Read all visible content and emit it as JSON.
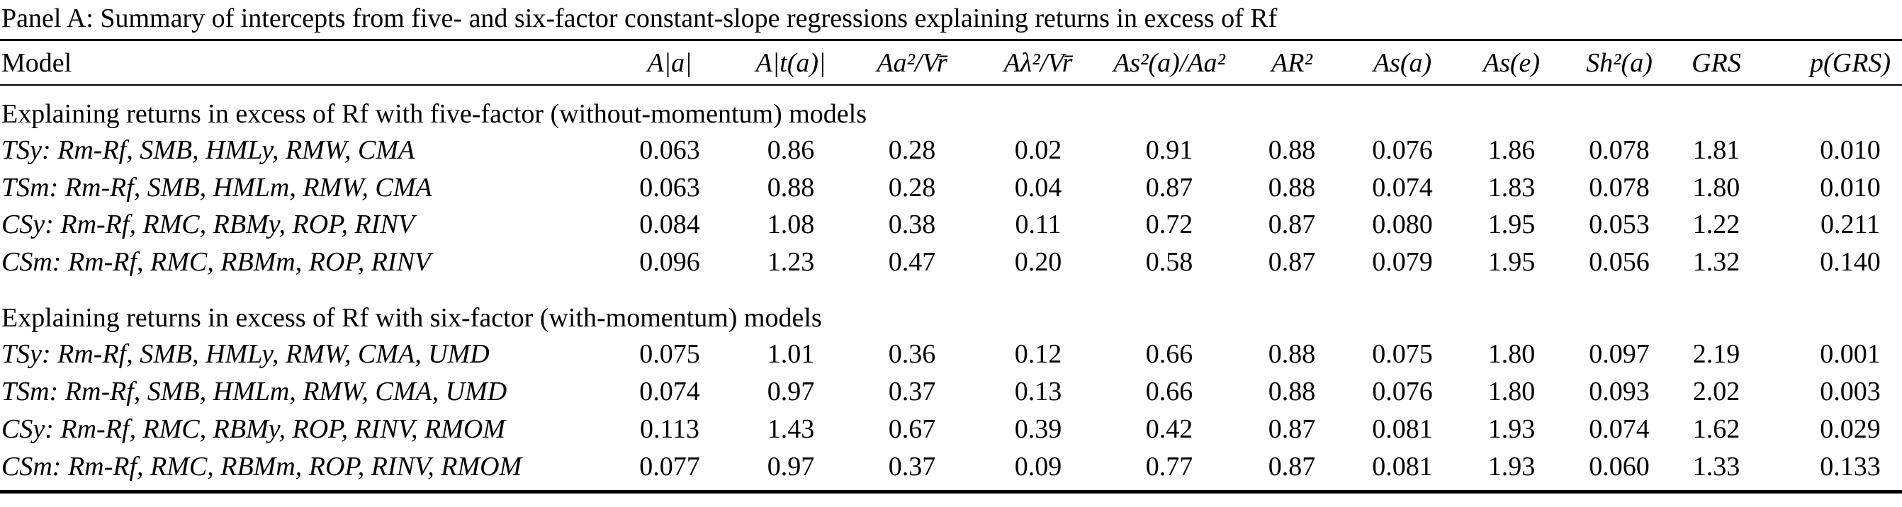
{
  "header": {
    "title": "Panel A: Summary of intercepts from five- and six-factor constant-slope regressions explaining returns in excess of Rf"
  },
  "table": {
    "columns": [
      "Model",
      "A|a|",
      "A|t(a)|",
      "Aa²/Vr̄",
      "Aλ²/Vr̄",
      "As²(a)/Aa²",
      "AR²",
      "As(a)",
      "As(e)",
      "Sh²(a)",
      "GRS",
      "p(GRS)"
    ],
    "sections": [
      {
        "title": "Explaining returns in excess of Rf with five-factor (without-momentum) models",
        "rows": [
          [
            "TSy:  Rm-Rf, SMB, HMLy, RMW, CMA",
            "0.063",
            "0.86",
            "0.28",
            "0.02",
            "0.91",
            "0.88",
            "0.076",
            "1.86",
            "0.078",
            "1.81",
            "0.010"
          ],
          [
            "TSm: Rm-Rf, SMB, HMLm, RMW, CMA",
            "0.063",
            "0.88",
            "0.28",
            "0.04",
            "0.87",
            "0.88",
            "0.074",
            "1.83",
            "0.078",
            "1.80",
            "0.010"
          ],
          [
            "CSy: Rm-Rf, RMC, RBMy, ROP, RINV",
            "0.084",
            "1.08",
            "0.38",
            "0.11",
            "0.72",
            "0.87",
            "0.080",
            "1.95",
            "0.053",
            "1.22",
            "0.211"
          ],
          [
            "CSm: Rm-Rf, RMC, RBMm, ROP, RINV",
            "0.096",
            "1.23",
            "0.47",
            "0.20",
            "0.58",
            "0.87",
            "0.079",
            "1.95",
            "0.056",
            "1.32",
            "0.140"
          ]
        ]
      },
      {
        "title": "Explaining returns in excess of Rf with six-factor (with-momentum) models",
        "rows": [
          [
            "TSy:  Rm-Rf, SMB, HMLy, RMW, CMA, UMD",
            "0.075",
            "1.01",
            "0.36",
            "0.12",
            "0.66",
            "0.88",
            "0.075",
            "1.80",
            "0.097",
            "2.19",
            "0.001"
          ],
          [
            "TSm: Rm-Rf, SMB, HMLm, RMW, CMA, UMD",
            "0.074",
            "0.97",
            "0.37",
            "0.13",
            "0.66",
            "0.88",
            "0.076",
            "1.80",
            "0.093",
            "2.02",
            "0.003"
          ],
          [
            "CSy: Rm-Rf, RMC, RBMy, ROP, RINV, RMOM",
            "0.113",
            "1.43",
            "0.67",
            "0.39",
            "0.42",
            "0.87",
            "0.081",
            "1.93",
            "0.074",
            "1.62",
            "0.029"
          ],
          [
            "CSm: Rm-Rf, RMC, RBMm, ROP, RINV, RMOM",
            "0.077",
            "0.97",
            "0.37",
            "0.09",
            "0.77",
            "0.87",
            "0.081",
            "1.93",
            "0.060",
            "1.33",
            "0.133"
          ]
        ]
      }
    ]
  }
}
